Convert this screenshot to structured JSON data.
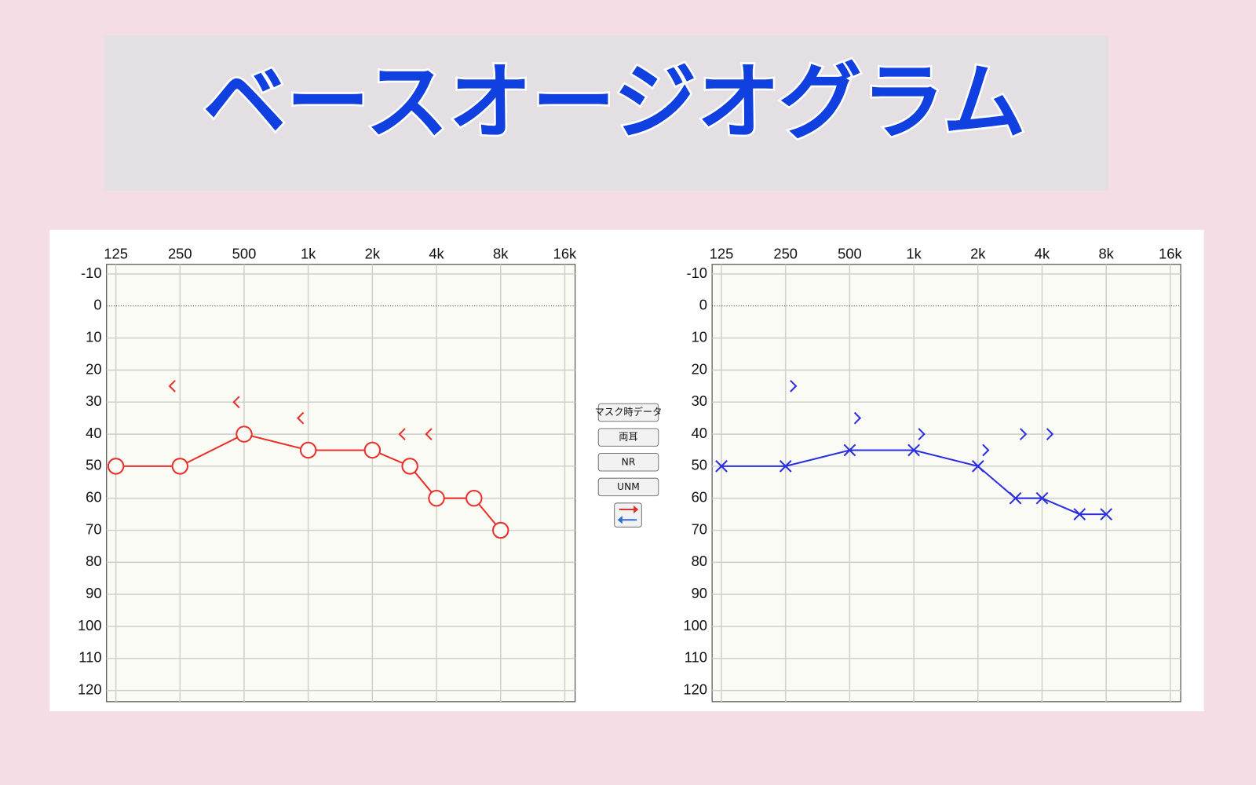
{
  "title": "ベースオージオグラム",
  "buttons": [
    "マスク時データ",
    "両耳",
    "NR",
    "UNM"
  ],
  "chart_data": [
    {
      "type": "line",
      "x_scale": "log",
      "y_inverted": true,
      "grid": true,
      "xlim": [
        113,
        17900
      ],
      "ylim": [
        -13,
        123.5
      ],
      "xticks": [
        125,
        250,
        500,
        {
          "value": 1000,
          "label": "1k"
        },
        {
          "value": 2000,
          "label": "2k"
        },
        {
          "value": 4000,
          "label": "4k"
        },
        {
          "value": 8000,
          "label": "8k"
        },
        {
          "value": 16000,
          "label": "16k"
        }
      ],
      "yticks": [
        -10,
        0,
        10,
        20,
        30,
        40,
        50,
        60,
        70,
        80,
        90,
        100,
        110,
        120
      ],
      "series": [
        {
          "color": "#e8302a",
          "marker": "circle",
          "line": true,
          "x": [
            125,
            250,
            500,
            1000,
            2000,
            3000,
            4000,
            6000,
            8000
          ],
          "values": [
            50,
            50,
            40,
            45,
            45,
            50,
            60,
            60,
            70
          ]
        },
        {
          "color": "#e8302a",
          "marker": "bracket-left",
          "line": false,
          "x": [
            250,
            500,
            1000,
            3000,
            4000
          ],
          "values": [
            25,
            30,
            35,
            40,
            40
          ]
        }
      ]
    },
    {
      "type": "line",
      "x_scale": "log",
      "y_inverted": true,
      "grid": true,
      "xlim": [
        113,
        17900
      ],
      "ylim": [
        -13,
        123.5
      ],
      "xticks": [
        125,
        250,
        500,
        {
          "value": 1000,
          "label": "1k"
        },
        {
          "value": 2000,
          "label": "2k"
        },
        {
          "value": 4000,
          "label": "4k"
        },
        {
          "value": 8000,
          "label": "8k"
        },
        {
          "value": 16000,
          "label": "16k"
        }
      ],
      "yticks": [
        -10,
        0,
        10,
        20,
        30,
        40,
        50,
        60,
        70,
        80,
        90,
        100,
        110,
        120
      ],
      "series": [
        {
          "color": "#2a2ee0",
          "marker": "cross",
          "line": true,
          "x": [
            125,
            250,
            500,
            1000,
            2000,
            3000,
            4000,
            6000,
            8000
          ],
          "values": [
            50,
            50,
            45,
            45,
            50,
            60,
            60,
            65,
            65
          ]
        },
        {
          "color": "#2a2ee0",
          "marker": "bracket-right",
          "line": false,
          "x": [
            250,
            500,
            1000,
            2000,
            3000,
            4000
          ],
          "values": [
            25,
            35,
            40,
            45,
            40,
            40
          ]
        }
      ]
    }
  ]
}
